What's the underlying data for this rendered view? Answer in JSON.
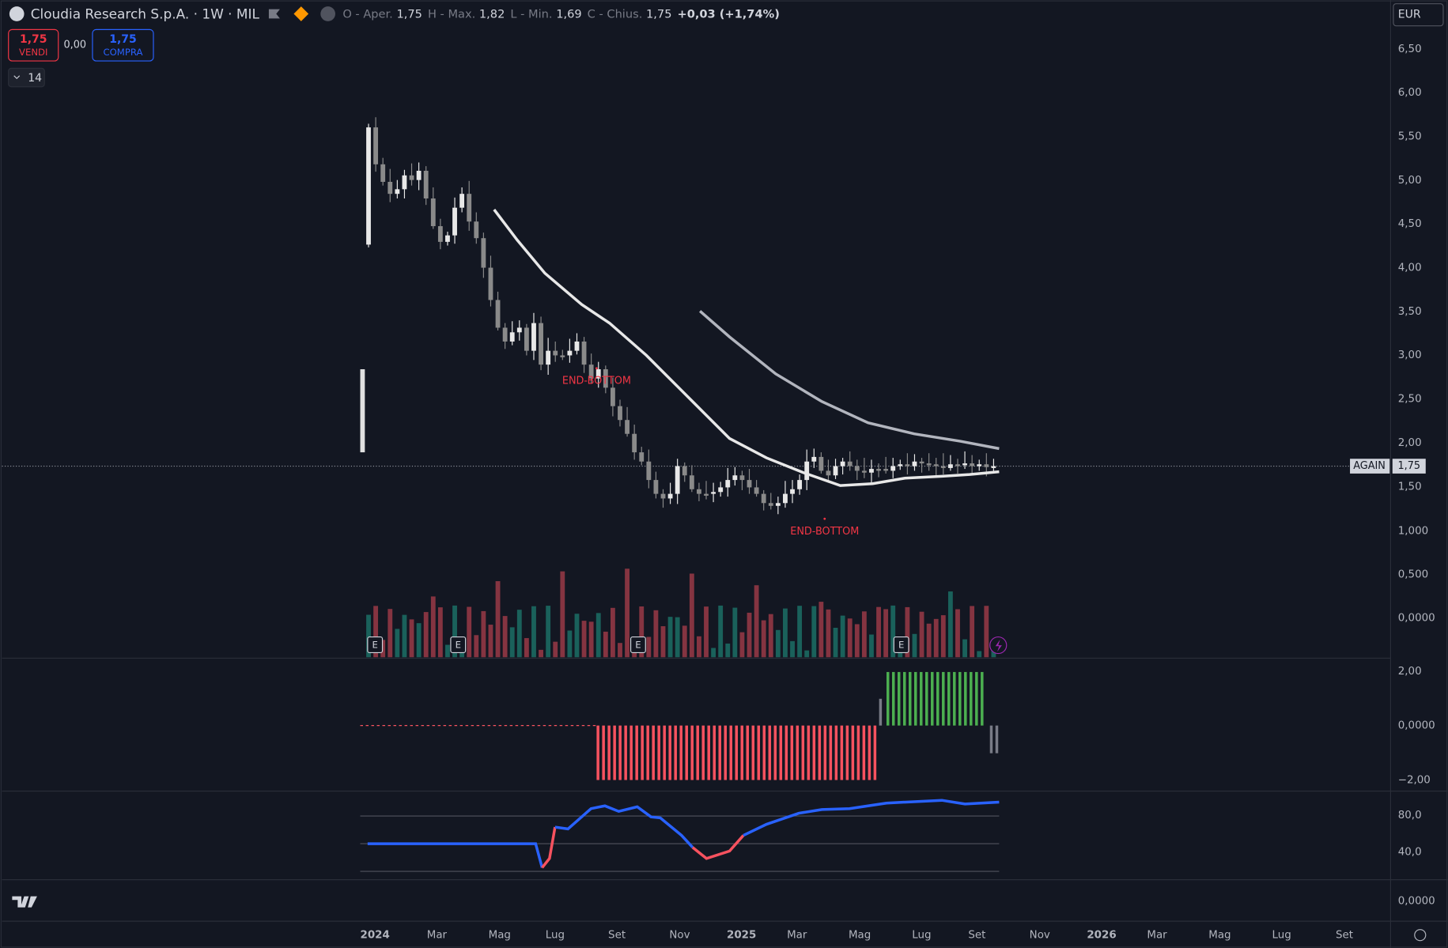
{
  "header": {
    "symbol": "Cloudia Research S.p.A. · 1W · MIL",
    "ohlc": [
      {
        "label": "O - Aper.",
        "value": "1,75"
      },
      {
        "label": "H - Max.",
        "value": "1,82"
      },
      {
        "label": "L - Min.",
        "value": "1,69"
      },
      {
        "label": "C - Chius.",
        "value": "1,75"
      }
    ],
    "change": "+0,03 (+1,74%)"
  },
  "trade": {
    "sell_price": "1,75",
    "sell_label": "VENDI",
    "spread": "0,00",
    "buy_price": "1,75",
    "buy_label": "COMPRA"
  },
  "indicators_count": "14",
  "currency": "EUR",
  "price_axis": [
    "6,50",
    "6,00",
    "5,50",
    "5,00",
    "4,50",
    "4,00",
    "3,50",
    "3,00",
    "2,50",
    "2,00",
    "1,50"
  ],
  "volume_axis": [
    "1,000",
    "0,500",
    "0,0000"
  ],
  "osc1_axis": [
    "2,00",
    "0,0000",
    "−2,00"
  ],
  "osc2_axis": [
    "80,0",
    "40,0"
  ],
  "osc3_axis": [
    "0,0000"
  ],
  "time_axis": [
    "2024",
    "Mar",
    "Mag",
    "Lug",
    "Set",
    "Nov",
    "2025",
    "Mar",
    "Mag",
    "Lug",
    "Set",
    "Nov",
    "2026",
    "Mar",
    "Mag",
    "Lug",
    "Set"
  ],
  "last_price": {
    "label": "AGAIN",
    "value": "1,75"
  },
  "annotations": [
    "END-BOTTOM",
    "END-BOTTOM"
  ],
  "earnings_markers": [
    "E",
    "E",
    "E",
    "E"
  ]
}
